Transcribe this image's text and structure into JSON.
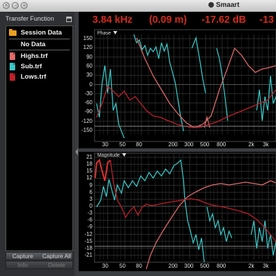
{
  "window": {
    "title": "Smaart"
  },
  "readout": {
    "frequency": "3.84 kHz",
    "delay": "(0.09 m)",
    "level": "-17.62 dB",
    "phase": "-13"
  },
  "sidebar": {
    "panel_title": "Transfer Function",
    "items": [
      {
        "label": "Session Data",
        "icon": "folder-icon"
      },
      {
        "label": "No Data",
        "icon": ""
      },
      {
        "label": "Highs.trf",
        "icon": "file-icon",
        "color": "#e06a6a"
      },
      {
        "label": "Sub.trf",
        "icon": "file-icon",
        "color": "#39c6c6"
      },
      {
        "label": "Lows.trf",
        "icon": "file-icon",
        "color": "#c0202a"
      }
    ],
    "buttons": {
      "capture": "Capture",
      "capture_all": "Capture All",
      "info": "Info",
      "delete": "Delete"
    }
  },
  "phase_plot": {
    "label": "Phase",
    "y_ticks": [
      "150",
      "120",
      "90",
      "60",
      "30",
      "0",
      "-30",
      "-60",
      "-90",
      "-120",
      "-150"
    ],
    "x_ticks": [
      "30",
      "50",
      "80",
      "200",
      "300",
      "500",
      "800",
      "2k",
      "3k"
    ]
  },
  "magnitude_plot": {
    "label": "Magnitude",
    "y_ticks": [
      "21",
      "18",
      "15",
      "12",
      "9",
      "6",
      "3",
      "0",
      "-3",
      "-6",
      "-9",
      "-12",
      "-15",
      "-18",
      "-21"
    ],
    "x_ticks": [
      "30",
      "50",
      "80",
      "200",
      "300",
      "500",
      "800",
      "2k",
      "3k"
    ]
  },
  "colors": {
    "highs": "#e06a6a",
    "sub": "#39c6c6",
    "lows": "#c0202a",
    "readout": "#d42a1a"
  }
}
